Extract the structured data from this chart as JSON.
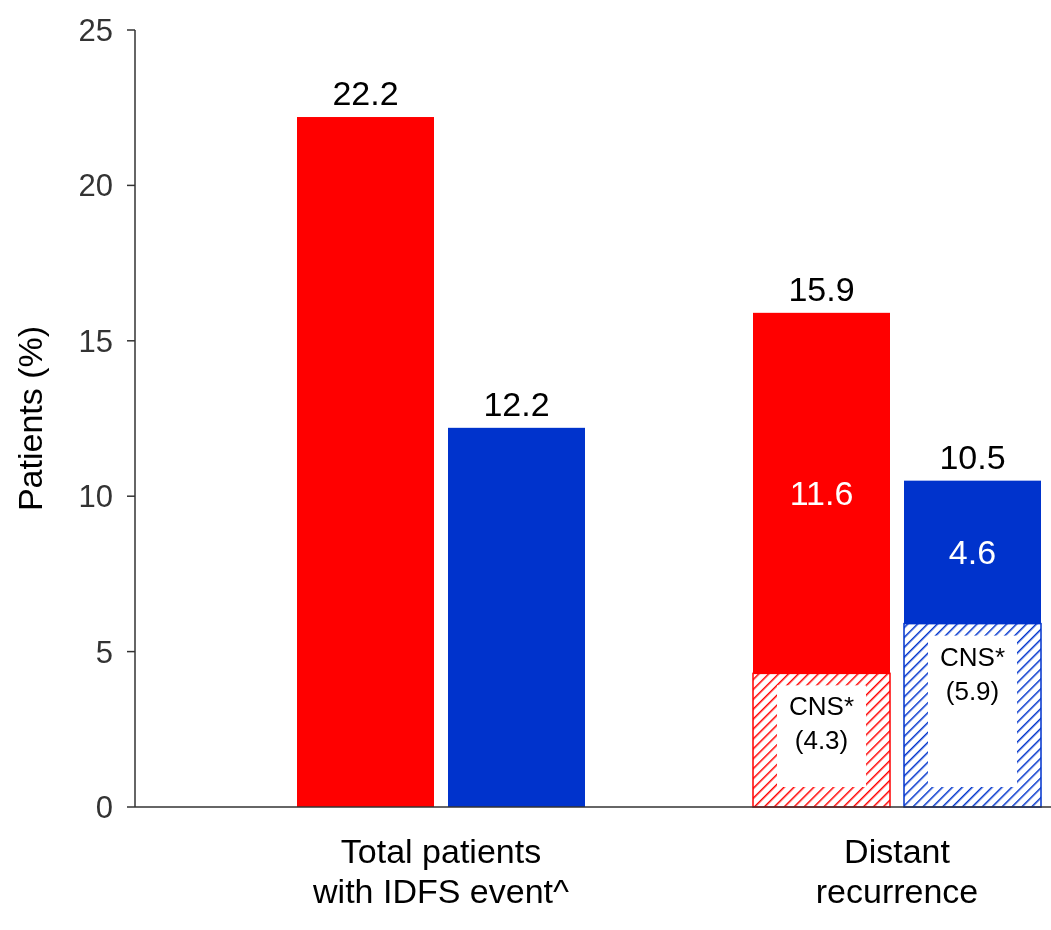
{
  "chart_data": {
    "type": "bar",
    "ylabel": "Patients (%)",
    "categories": [
      "Total patients with IDFS event^",
      "Distant recurrence"
    ],
    "series": [
      {
        "name": "CNS*",
        "color": "#ff0000",
        "values": [
          null,
          4.3
        ],
        "base": [
          null,
          0
        ],
        "value_labels": [
          null,
          "(4.3)"
        ]
      },
      {
        "color": "#ff0000",
        "values": [
          22.2,
          11.6
        ],
        "base": [
          0,
          4.3
        ],
        "value_labels": [
          null,
          "11.6"
        ]
      },
      {
        "name": "CNS*",
        "color": "#0033cc",
        "values": [
          null,
          5.9
        ],
        "base": [
          null,
          0
        ],
        "value_labels": [
          null,
          "(5.9)"
        ]
      },
      {
        "color": "#0033cc",
        "values": [
          12.2,
          4.6
        ],
        "base": [
          0,
          5.9
        ],
        "value_labels": [
          null,
          "4.6"
        ]
      }
    ],
    "totals": [
      [
        "22.2",
        "15.9"
      ],
      [
        "12.2",
        "10.5"
      ]
    ],
    "ylim": [
      0,
      25
    ],
    "yticks": [
      0,
      5,
      10,
      15,
      20,
      25
    ]
  }
}
